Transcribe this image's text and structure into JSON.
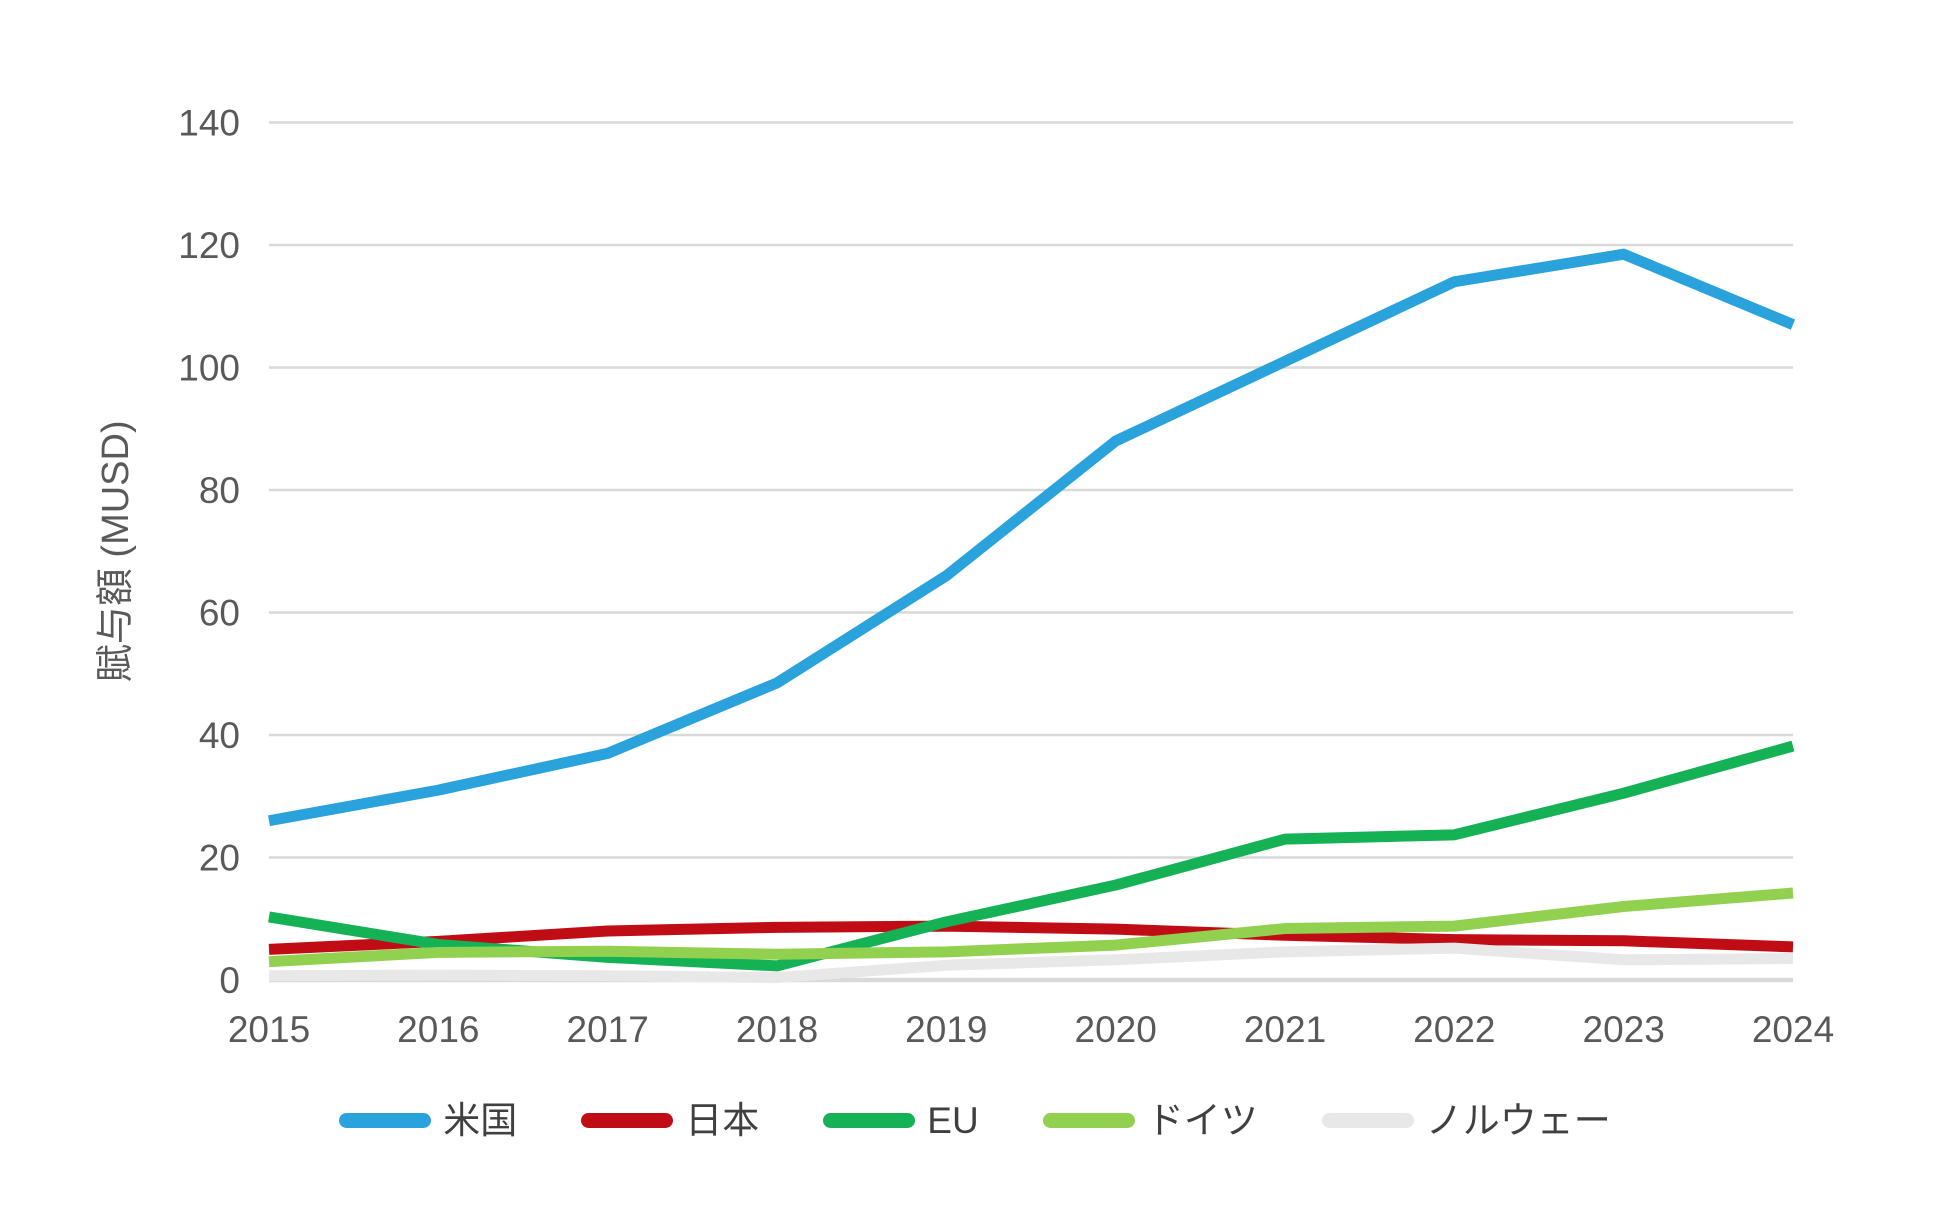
{
  "page": {
    "background": "#ffffff"
  },
  "chart_data": {
    "type": "line",
    "title": "",
    "xlabel": "",
    "ylabel": "賦与額 (MUSD)",
    "categories": [
      "2015",
      "2016",
      "2017",
      "2018",
      "2019",
      "2020",
      "2021",
      "2022",
      "2023",
      "2024"
    ],
    "series": [
      {
        "name": "米国",
        "slug": "usa",
        "color": "#2AA2DC",
        "values": [
          26,
          31,
          37,
          48.5,
          66,
          88,
          101,
          114,
          118.5,
          107
        ]
      },
      {
        "name": "日本",
        "slug": "japan",
        "color": "#C00D15",
        "values": [
          5,
          6.3,
          8,
          8.6,
          8.8,
          8.3,
          7.3,
          6.6,
          6.4,
          5.4
        ]
      },
      {
        "name": "EU",
        "slug": "eu",
        "color": "#14B155",
        "values": [
          10.3,
          5.8,
          3.7,
          2.3,
          9.5,
          15.5,
          23,
          23.7,
          30.5,
          38.2
        ]
      },
      {
        "name": "ドイツ",
        "slug": "germany",
        "color": "#92D050",
        "values": [
          3,
          4.5,
          4.7,
          4.2,
          4.6,
          5.7,
          8.4,
          8.8,
          12,
          14.2
        ]
      },
      {
        "name": "ノルウェー",
        "slug": "norway",
        "color": "#E8E8E8",
        "values": [
          0.7,
          0.8,
          0.7,
          0.4,
          2.4,
          3.3,
          4.6,
          5.2,
          3.3,
          3.5
        ]
      }
    ],
    "ylim": [
      0,
      140
    ],
    "yticks": [
      0,
      20,
      40,
      60,
      80,
      100,
      120,
      140
    ],
    "grid": true,
    "legend_position": "bottom",
    "colors": {
      "gridline": "#D9D9D9",
      "axis_line": "#D9D9D9",
      "tick_text": "#595959",
      "axis_title_text": "#595959",
      "legend_text": "#404040"
    }
  }
}
